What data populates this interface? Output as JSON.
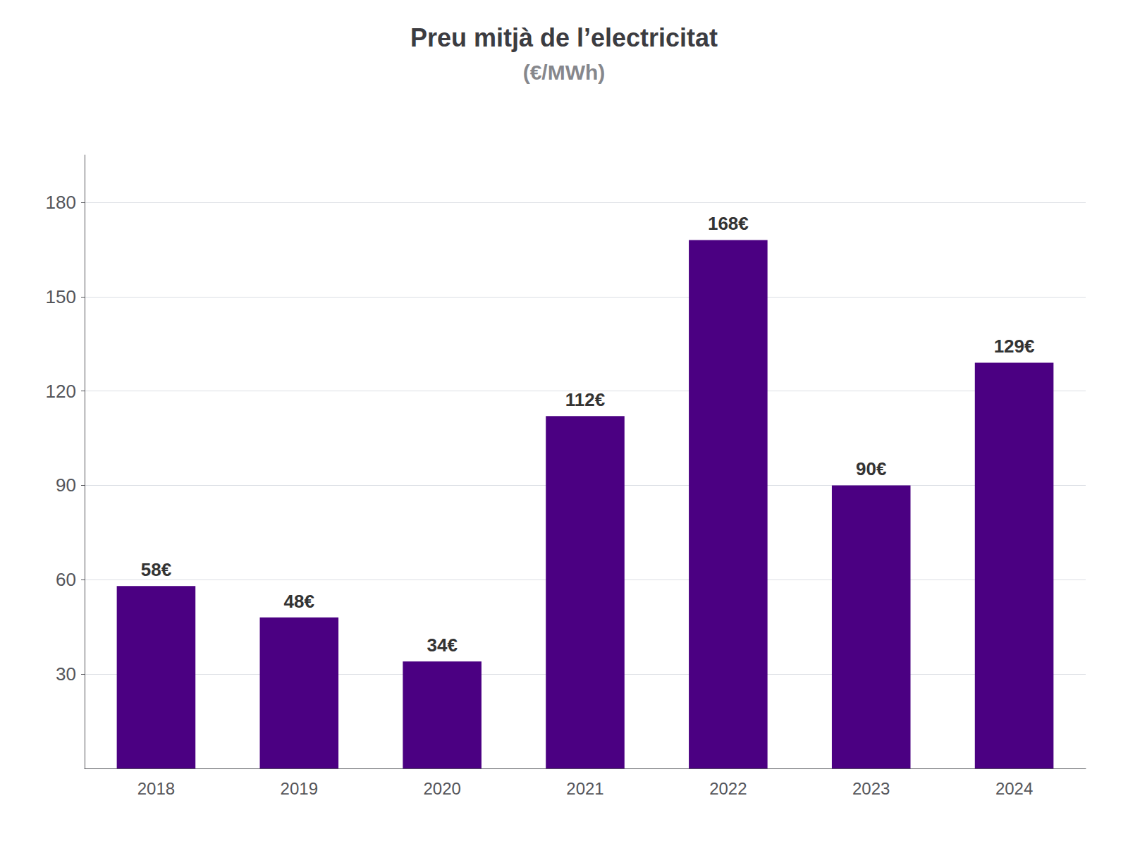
{
  "chart_data": {
    "type": "bar",
    "title": "Preu mitjà de l’electricitat",
    "subtitle": "(€/MWh)",
    "categories": [
      "2018",
      "2019",
      "2020",
      "2021",
      "2022",
      "2023",
      "2024"
    ],
    "values": [
      58,
      48,
      34,
      112,
      168,
      90,
      129
    ],
    "value_labels": [
      "58€",
      "48€",
      "34€",
      "112€",
      "168€",
      "90€",
      "129€"
    ],
    "data_labels": true,
    "color": "#4B0082",
    "ylim": [
      0,
      195
    ],
    "yticks": [
      30,
      60,
      90,
      120,
      150,
      180
    ],
    "grid": true
  }
}
